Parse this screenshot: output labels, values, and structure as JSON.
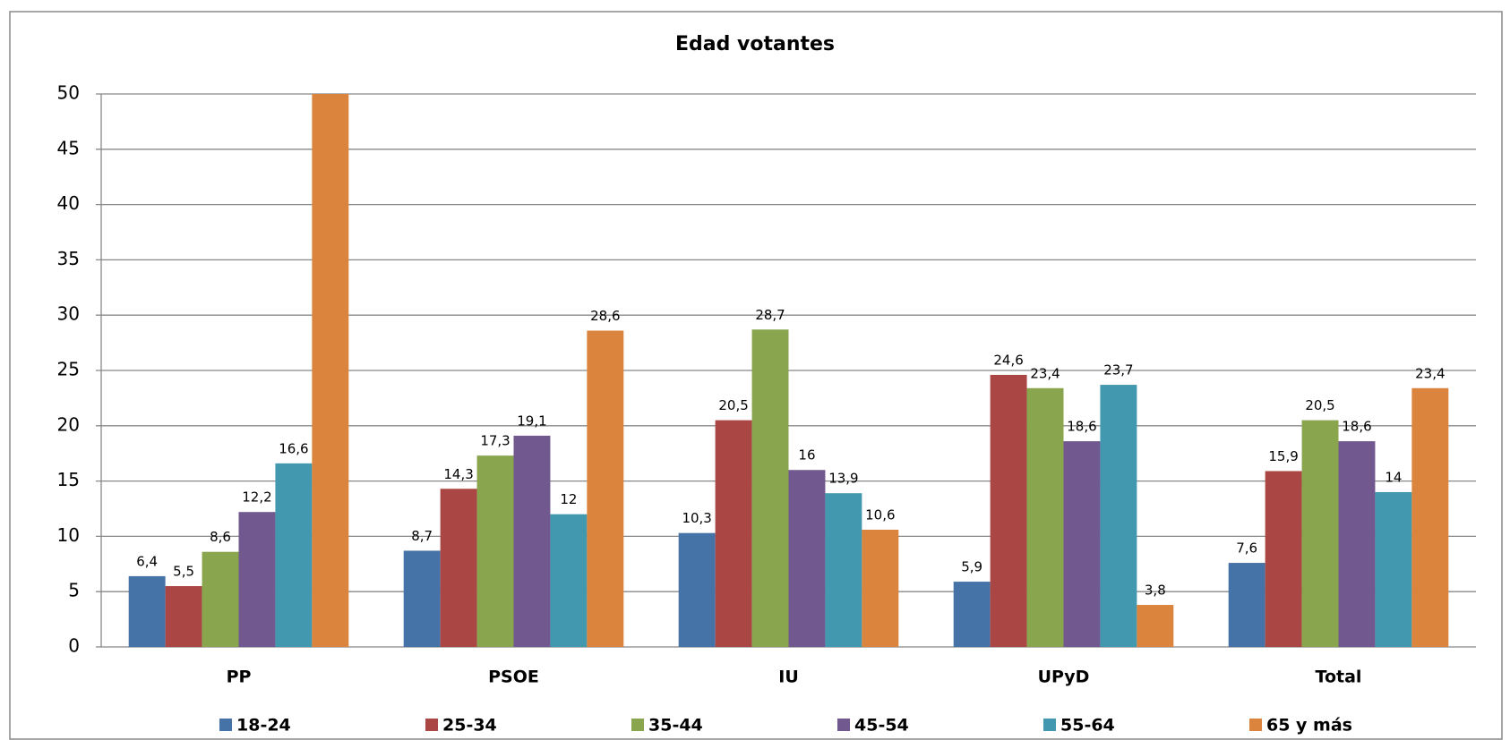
{
  "chart_data": {
    "type": "bar",
    "title": "Edad votantes",
    "categories": [
      "PP",
      "PSOE",
      "IU",
      "UPyD",
      "Total"
    ],
    "series": [
      {
        "name": "18-24",
        "color": "#4572a7",
        "values": [
          6.4,
          8.7,
          10.3,
          5.9,
          7.6
        ],
        "value_labels": [
          "6,4",
          "8,7",
          "10,3",
          "5,9",
          "7,6"
        ]
      },
      {
        "name": "25-34",
        "color": "#aa4643",
        "values": [
          5.5,
          14.3,
          20.5,
          24.6,
          15.9
        ],
        "value_labels": [
          "5,5",
          "14,3",
          "20,5",
          "24,6",
          "15,9"
        ]
      },
      {
        "name": "35-44",
        "color": "#89a54e",
        "values": [
          8.6,
          17.3,
          28.7,
          23.4,
          20.5
        ],
        "value_labels": [
          "8,6",
          "17,3",
          "28,7",
          "23,4",
          "20,5"
        ]
      },
      {
        "name": "45-54",
        "color": "#71588f",
        "values": [
          12.2,
          19.1,
          16,
          18.6,
          18.6
        ],
        "value_labels": [
          "12,2",
          "19,1",
          "16",
          "18,6",
          "18,6"
        ]
      },
      {
        "name": "55-64",
        "color": "#4198af",
        "values": [
          16.6,
          12,
          13.9,
          23.7,
          14
        ],
        "value_labels": [
          "16,6",
          "12",
          "13,9",
          "23,7",
          "14"
        ]
      },
      {
        "name": "65 y más",
        "color": "#db843d",
        "values": [
          50,
          28.6,
          10.6,
          3.8,
          23.4
        ],
        "value_labels": [
          null,
          "28,6",
          "10,6",
          "3,8",
          "23,4"
        ]
      }
    ],
    "ylim": [
      0,
      50
    ],
    "yticks": [
      0,
      5,
      10,
      15,
      20,
      25,
      30,
      35,
      40,
      45,
      50
    ],
    "grid": true,
    "legend": "bottom"
  }
}
